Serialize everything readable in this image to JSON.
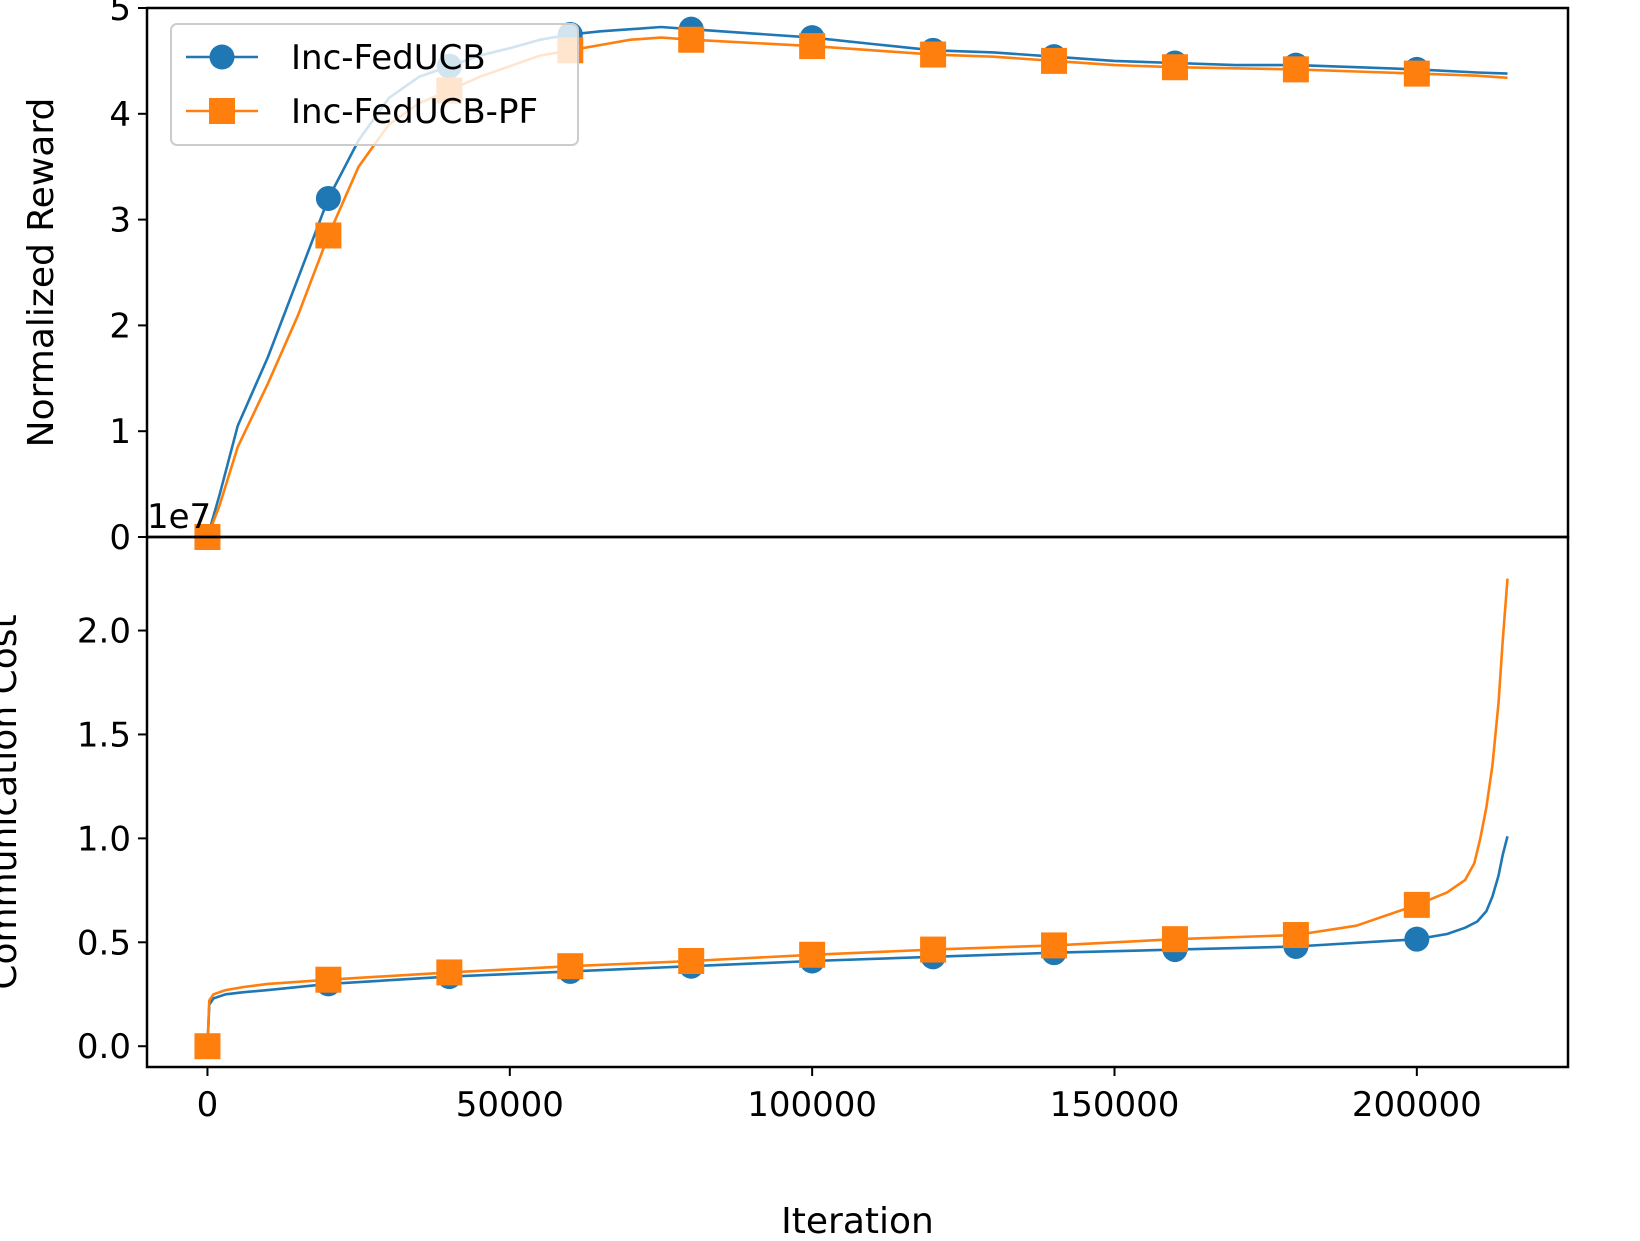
{
  "colors": {
    "series_blue": "#1f77b4",
    "series_orange": "#ff7f0e"
  },
  "chart_data": [
    {
      "type": "line",
      "panel": "top",
      "ylabel": "Normalized Reward",
      "xlabel": "",
      "ylim": [
        0,
        5
      ],
      "xlim": [
        -10000,
        225000
      ],
      "y_ticks": [
        0,
        1,
        2,
        3,
        4,
        5
      ],
      "y_tick_labels": [
        "0",
        "1",
        "2",
        "3",
        "4",
        "5"
      ],
      "offset_text": "1e7",
      "grid": false,
      "legend": {
        "position": "top-left",
        "entries": [
          "Inc-FedUCB",
          "Inc-FedUCB-PF"
        ]
      },
      "series": [
        {
          "name": "Inc-FedUCB",
          "color": "#1f77b4",
          "marker": "circle",
          "x": [
            0,
            2000,
            5000,
            10000,
            15000,
            20000,
            25000,
            30000,
            35000,
            40000,
            45000,
            50000,
            55000,
            60000,
            65000,
            70000,
            75000,
            80000,
            90000,
            100000,
            110000,
            120000,
            130000,
            140000,
            150000,
            160000,
            170000,
            180000,
            190000,
            200000,
            210000,
            215000
          ],
          "y": [
            0,
            0.4,
            1.05,
            1.7,
            2.45,
            3.2,
            3.75,
            4.15,
            4.35,
            4.45,
            4.55,
            4.62,
            4.7,
            4.75,
            4.78,
            4.8,
            4.82,
            4.8,
            4.76,
            4.72,
            4.66,
            4.6,
            4.58,
            4.54,
            4.5,
            4.48,
            4.46,
            4.46,
            4.44,
            4.42,
            4.39,
            4.38
          ],
          "marker_x": [
            0,
            20000,
            40000,
            60000,
            80000,
            100000,
            120000,
            140000,
            160000,
            180000,
            200000
          ],
          "marker_y": [
            0,
            3.2,
            4.45,
            4.75,
            4.8,
            4.72,
            4.6,
            4.54,
            4.48,
            4.46,
            4.42
          ]
        },
        {
          "name": "Inc-FedUCB-PF",
          "color": "#ff7f0e",
          "marker": "square",
          "x": [
            0,
            2000,
            5000,
            10000,
            15000,
            20000,
            25000,
            30000,
            35000,
            40000,
            45000,
            50000,
            55000,
            60000,
            65000,
            70000,
            75000,
            80000,
            90000,
            100000,
            110000,
            120000,
            130000,
            140000,
            150000,
            160000,
            170000,
            180000,
            190000,
            200000,
            210000,
            215000
          ],
          "y": [
            0,
            0.3,
            0.85,
            1.45,
            2.1,
            2.85,
            3.5,
            3.9,
            4.1,
            4.22,
            4.35,
            4.45,
            4.55,
            4.6,
            4.65,
            4.7,
            4.72,
            4.7,
            4.67,
            4.64,
            4.6,
            4.56,
            4.54,
            4.5,
            4.46,
            4.44,
            4.43,
            4.42,
            4.4,
            4.38,
            4.36,
            4.34
          ],
          "marker_x": [
            0,
            20000,
            40000,
            60000,
            80000,
            100000,
            120000,
            140000,
            160000,
            180000,
            200000
          ],
          "marker_y": [
            0,
            2.85,
            4.22,
            4.6,
            4.7,
            4.64,
            4.56,
            4.5,
            4.44,
            4.42,
            4.38
          ]
        }
      ]
    },
    {
      "type": "line",
      "panel": "bottom",
      "ylabel": "Communication Cost",
      "xlabel": "Iteration",
      "ylim": [
        -0.1,
        2.45
      ],
      "xlim": [
        -10000,
        225000
      ],
      "y_ticks": [
        0,
        0.5,
        1.0,
        1.5,
        2.0
      ],
      "y_tick_labels": [
        "0.0",
        "0.5",
        "1.0",
        "1.5",
        "2.0"
      ],
      "x_ticks": [
        0,
        50000,
        100000,
        150000,
        200000
      ],
      "x_tick_labels": [
        "0",
        "50000",
        "100000",
        "150000",
        "200000"
      ],
      "grid": false,
      "series": [
        {
          "name": "Inc-FedUCB",
          "color": "#1f77b4",
          "marker": "circle",
          "x": [
            0,
            300,
            1000,
            3000,
            6000,
            10000,
            20000,
            40000,
            60000,
            80000,
            100000,
            120000,
            140000,
            160000,
            180000,
            200000,
            205000,
            208000,
            210000,
            211500,
            212500,
            213500,
            214200,
            215000
          ],
          "y": [
            0,
            0.2,
            0.23,
            0.25,
            0.26,
            0.27,
            0.3,
            0.335,
            0.36,
            0.385,
            0.41,
            0.43,
            0.45,
            0.465,
            0.48,
            0.515,
            0.54,
            0.57,
            0.6,
            0.65,
            0.72,
            0.82,
            0.92,
            1.01
          ],
          "marker_x": [
            20000,
            40000,
            60000,
            80000,
            100000,
            120000,
            140000,
            160000,
            180000,
            200000
          ],
          "marker_y": [
            0.3,
            0.335,
            0.36,
            0.385,
            0.41,
            0.43,
            0.45,
            0.465,
            0.48,
            0.515
          ]
        },
        {
          "name": "Inc-FedUCB-PF",
          "color": "#ff7f0e",
          "marker": "square",
          "x": [
            0,
            300,
            1000,
            3000,
            6000,
            10000,
            20000,
            40000,
            60000,
            80000,
            100000,
            120000,
            140000,
            160000,
            180000,
            190000,
            200000,
            205000,
            208000,
            209500,
            210500,
            211500,
            212500,
            213500,
            214200,
            215000
          ],
          "y": [
            0,
            0.22,
            0.25,
            0.27,
            0.285,
            0.3,
            0.32,
            0.355,
            0.385,
            0.41,
            0.44,
            0.465,
            0.485,
            0.515,
            0.535,
            0.58,
            0.68,
            0.74,
            0.8,
            0.88,
            1.0,
            1.15,
            1.35,
            1.65,
            1.95,
            2.25
          ],
          "marker_x": [
            0,
            20000,
            40000,
            60000,
            80000,
            100000,
            120000,
            140000,
            160000,
            180000,
            200000
          ],
          "marker_y": [
            0,
            0.32,
            0.355,
            0.385,
            0.41,
            0.44,
            0.465,
            0.485,
            0.515,
            0.535,
            0.68
          ]
        }
      ]
    }
  ]
}
